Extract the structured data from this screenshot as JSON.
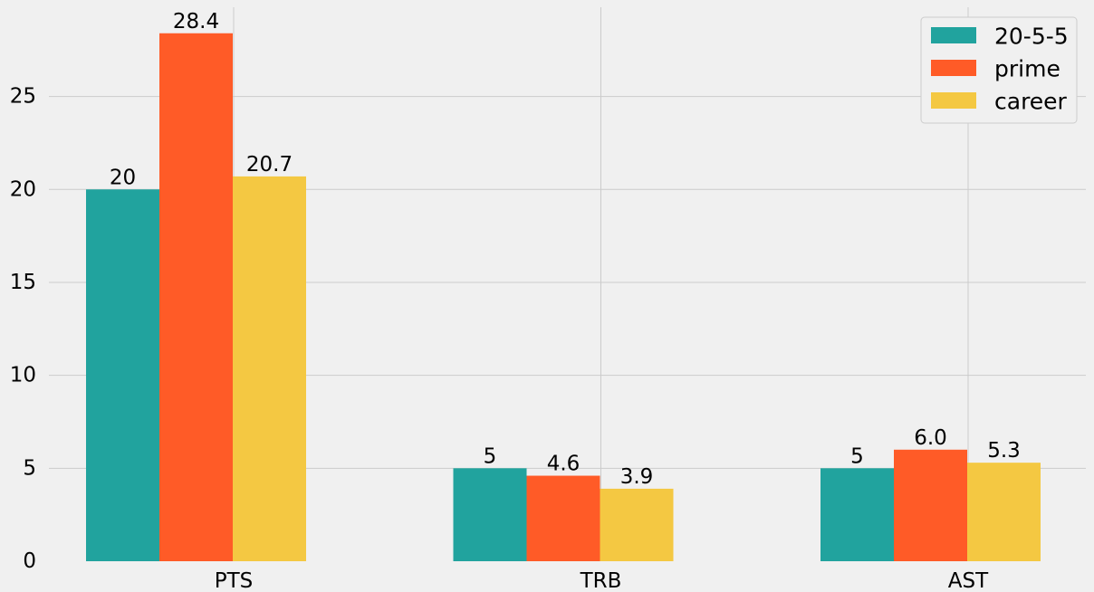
{
  "chart_data": {
    "type": "bar",
    "categories": [
      "PTS",
      "TRB",
      "AST"
    ],
    "series": [
      {
        "name": "20-5-5",
        "values": [
          20,
          5,
          5
        ],
        "labels": [
          "20",
          "5",
          "5"
        ],
        "color": "#21a39e"
      },
      {
        "name": "prime",
        "values": [
          28.4,
          4.6,
          6.0
        ],
        "labels": [
          "28.4",
          "4.6",
          "6.0"
        ],
        "color": "#ff5b27"
      },
      {
        "name": "career",
        "values": [
          20.7,
          3.9,
          5.3
        ],
        "labels": [
          "20.7",
          "3.9",
          "5.3"
        ],
        "color": "#f4c842"
      }
    ],
    "yticks": [
      0,
      5,
      10,
      15,
      20,
      25
    ],
    "ylim": [
      0,
      29.8
    ],
    "grid": true,
    "legend_position": "top-right",
    "background": "#f0f0f0",
    "grid_color": "#cbcbcb"
  }
}
